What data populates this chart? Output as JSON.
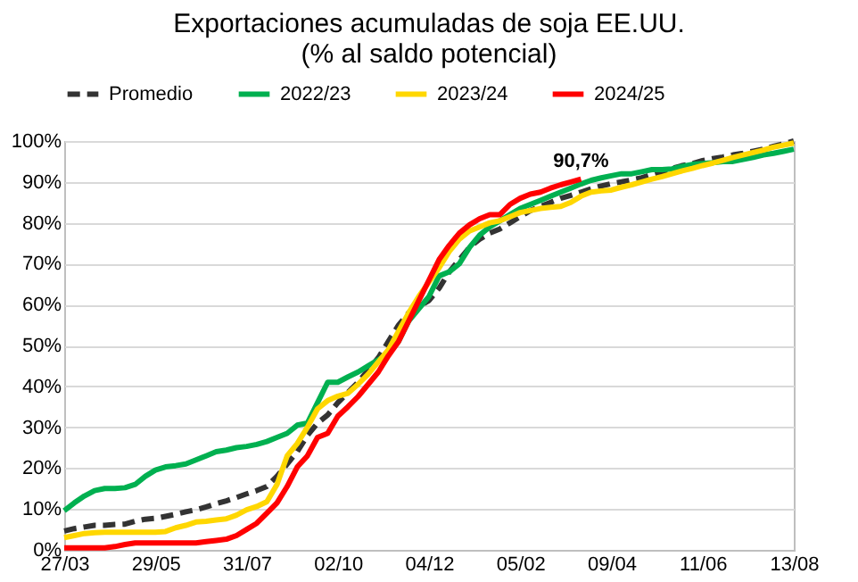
{
  "chart_data": {
    "type": "line",
    "title": [
      "Exportaciones acumuladas de soja EE.UU.",
      "(% al saldo potencial)"
    ],
    "categories": [
      "27/03",
      null,
      null,
      null,
      null,
      null,
      null,
      null,
      null,
      "29/05",
      null,
      null,
      null,
      null,
      null,
      null,
      null,
      null,
      "31/07",
      null,
      null,
      null,
      null,
      null,
      null,
      null,
      null,
      "02/10",
      null,
      null,
      null,
      null,
      null,
      null,
      null,
      null,
      "04/12",
      null,
      null,
      null,
      null,
      null,
      null,
      null,
      null,
      "05/02",
      null,
      null,
      null,
      null,
      null,
      null,
      null,
      null,
      "09/04",
      null,
      null,
      null,
      null,
      null,
      null,
      null,
      null,
      "11/06",
      null,
      null,
      null,
      null,
      null,
      null,
      null,
      null,
      "13/08"
    ],
    "ylim": [
      0,
      100
    ],
    "yticks": [
      {
        "value": 0,
        "label": "0%"
      },
      {
        "value": 10,
        "label": "10%"
      },
      {
        "value": 20,
        "label": "20%"
      },
      {
        "value": 30,
        "label": "30%"
      },
      {
        "value": 40,
        "label": "40%"
      },
      {
        "value": 50,
        "label": "50%"
      },
      {
        "value": 60,
        "label": "60%"
      },
      {
        "value": 70,
        "label": "70%"
      },
      {
        "value": 80,
        "label": "80%"
      },
      {
        "value": 90,
        "label": "90%"
      },
      {
        "value": 100,
        "label": "100%"
      }
    ],
    "grid": "y",
    "legend": "top",
    "series": [
      {
        "name": "Promedio",
        "color": "#333333",
        "line_style": "dashed",
        "values": [
          4.6,
          5.2,
          5.6,
          6,
          6,
          6.2,
          6.3,
          7,
          7.5,
          7.7,
          8.2,
          8.7,
          9.3,
          9.8,
          10.5,
          11.3,
          12,
          12.8,
          13.7,
          14.5,
          15.5,
          18,
          21,
          24,
          28,
          31,
          33,
          36,
          38.5,
          41,
          44,
          47,
          51,
          55,
          58,
          59.5,
          61,
          64,
          68,
          71,
          74,
          76,
          77.5,
          78.5,
          80,
          81.5,
          83,
          84,
          85,
          86,
          86.7,
          87.5,
          88.3,
          89,
          89.6,
          90,
          90.5,
          91,
          91.8,
          92.5,
          93.3,
          94,
          94.5,
          95.2,
          95.7,
          96.1,
          96.6,
          97,
          97.5,
          98,
          98.7,
          99.3,
          100
        ]
      },
      {
        "name": "2022/23",
        "color": "#00b050",
        "line_style": "solid",
        "values": [
          9.6,
          11.5,
          13.2,
          14.5,
          15,
          15,
          15.2,
          16,
          18,
          19.5,
          20.3,
          20.6,
          21,
          22,
          23,
          24,
          24.4,
          25,
          25.3,
          25.8,
          26.5,
          27.5,
          28.5,
          30.5,
          31,
          36,
          41,
          41,
          42.3,
          43.5,
          45,
          46.5,
          48,
          51,
          56,
          59,
          62,
          67,
          68,
          70,
          74,
          77,
          79,
          80.5,
          82,
          83.5,
          84.5,
          85.5,
          86.5,
          87.5,
          88.5,
          89.5,
          90.4,
          91,
          91.5,
          92,
          92,
          92.5,
          93,
          93,
          93.2,
          93.8,
          94.3,
          94.5,
          94.7,
          95,
          95,
          95.5,
          96,
          96.6,
          97,
          97.5,
          98
        ]
      },
      {
        "name": "2023/24",
        "color": "#ffd700",
        "line_style": "solid",
        "values": [
          3,
          3.5,
          4,
          4.2,
          4.3,
          4.3,
          4.3,
          4.3,
          4.3,
          4.3,
          4.5,
          5.4,
          6,
          6.8,
          7,
          7.3,
          7.6,
          8.5,
          9.8,
          10.6,
          11.8,
          16,
          23,
          26,
          30,
          34.5,
          36.5,
          37.6,
          38.3,
          40.5,
          43,
          46,
          49,
          53.5,
          58,
          62,
          65.5,
          69,
          73,
          76,
          78,
          79,
          80,
          80.5,
          81.5,
          82.5,
          83,
          83.5,
          83.8,
          84,
          85,
          86.5,
          87.5,
          87.8,
          88,
          88.7,
          89.3,
          90,
          90.7,
          91.3,
          92,
          92.7,
          93.3,
          94,
          94.6,
          95.3,
          96,
          96.6,
          97.2,
          97.8,
          98.5,
          99,
          99.5
        ]
      },
      {
        "name": "2024/25",
        "color": "#ff0000",
        "line_style": "solid",
        "values": [
          0.5,
          0.5,
          0.5,
          0.5,
          0.5,
          0.8,
          1.3,
          1.7,
          1.7,
          1.7,
          1.7,
          1.7,
          1.7,
          1.7,
          2,
          2.3,
          2.6,
          3.5,
          5,
          6.5,
          9,
          11.5,
          15.5,
          20.3,
          23,
          27.5,
          28.5,
          32.7,
          35,
          37.5,
          40.5,
          43.5,
          47.5,
          51,
          56,
          61,
          66,
          71,
          74.5,
          77.5,
          79.5,
          81,
          82,
          82,
          84.5,
          86,
          87,
          87.5,
          88.5,
          89.3,
          90,
          90.7,
          null,
          null,
          null,
          null,
          null,
          null,
          null,
          null,
          null,
          null,
          null,
          null,
          null,
          null,
          null,
          null,
          null,
          null,
          null,
          null,
          null
        ]
      }
    ],
    "annotations": [
      {
        "text": "90,7%",
        "y": 90.7
      }
    ]
  }
}
